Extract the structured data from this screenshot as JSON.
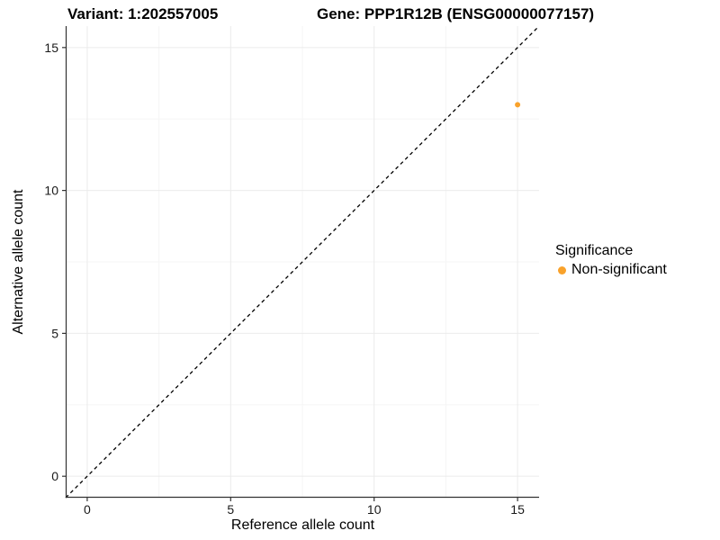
{
  "figure": {
    "titles": {
      "variant": "Variant: 1:202557005",
      "gene": "Gene: PPP1R12B (ENSG00000077157)"
    }
  },
  "legend": {
    "title": "Significance",
    "items": [
      {
        "label": "Non-significant",
        "color": "#F9A22B"
      }
    ]
  },
  "chart_data": {
    "type": "scatter",
    "title": "Variant: 1:202557005 | Gene: PPP1R12B (ENSG00000077157)",
    "xlabel": "Reference allele count",
    "ylabel": "Alternative allele count",
    "xlim": [
      -0.75,
      15.75
    ],
    "ylim": [
      -0.75,
      15.75
    ],
    "x_ticks": [
      0,
      5,
      10,
      15
    ],
    "y_ticks": [
      0,
      5,
      10,
      15
    ],
    "x_minor_ticks": [
      2.5,
      7.5,
      12.5
    ],
    "y_minor_ticks": [
      2.5,
      7.5,
      12.5
    ],
    "grid": "major-and-minor",
    "legend_position": "right",
    "legend_title": "Significance",
    "series": [
      {
        "name": "Non-significant",
        "color": "#F9A22B",
        "points": [
          {
            "x": 15,
            "y": 13
          }
        ],
        "point_radius": 3
      }
    ],
    "reference_line": {
      "kind": "identity",
      "linestyle": "dashed",
      "color": "#000000"
    }
  },
  "colors": {
    "background": "#FFFFFF",
    "axis_line": "#333333",
    "tick_text": "#1A1A1A",
    "grid_major": "#EBEBEB",
    "grid_minor": "#F5F5F5",
    "reference_line": "#000000"
  }
}
